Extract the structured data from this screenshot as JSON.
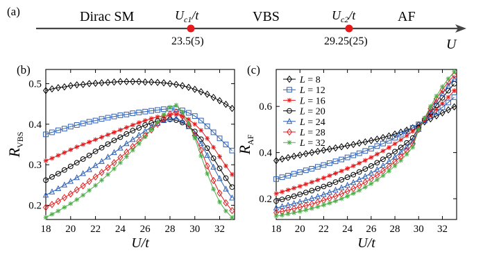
{
  "panel_a": {
    "label": "(a)",
    "phases": [
      "Dirac SM",
      "VBS",
      "AF"
    ],
    "axis_var": "U",
    "critical_points": [
      {
        "symbol_main": "U",
        "symbol_sub": "c1",
        "denominator": "/t",
        "value_text": "23.5(5)",
        "value": 23.5
      },
      {
        "symbol_main": "U",
        "symbol_sub": "c2",
        "denominator": "/t",
        "value_text": "29.25(25)",
        "value": 29.25
      }
    ],
    "point_color": "#e41a1c"
  },
  "chart_data": [
    {
      "panel": "(b)",
      "type": "line",
      "xlabel": "U/t",
      "ylabel_main": "R",
      "ylabel_sub": "VBS",
      "xlim": [
        18,
        33.2
      ],
      "ylim": [
        0.165,
        0.535
      ],
      "xticks": [
        18,
        20,
        22,
        24,
        26,
        28,
        30,
        32
      ],
      "yticks": [
        0.2,
        0.3,
        0.4,
        0.5
      ],
      "x": [
        18,
        18.5,
        19,
        19.5,
        20,
        20.5,
        21,
        21.5,
        22,
        22.5,
        23,
        23.5,
        24,
        24.5,
        25,
        25.5,
        26,
        26.5,
        27,
        27.5,
        28,
        28.5,
        29,
        29.5,
        30,
        30.5,
        31,
        31.5,
        32,
        32.5,
        33
      ],
      "series": [
        {
          "name": "L = 8",
          "color": "#000000",
          "marker": "diamond",
          "values": [
            0.483,
            0.487,
            0.49,
            0.492,
            0.495,
            0.497,
            0.498,
            0.5,
            0.501,
            0.502,
            0.503,
            0.504,
            0.505,
            0.505,
            0.505,
            0.505,
            0.504,
            0.504,
            0.503,
            0.502,
            0.5,
            0.498,
            0.495,
            0.491,
            0.486,
            0.48,
            0.474,
            0.466,
            0.458,
            0.449,
            0.439
          ]
        },
        {
          "name": "L = 12",
          "color": "#2b5fb5",
          "marker": "square",
          "values": [
            0.375,
            0.38,
            0.385,
            0.389,
            0.394,
            0.398,
            0.402,
            0.406,
            0.409,
            0.413,
            0.416,
            0.419,
            0.422,
            0.424,
            0.427,
            0.429,
            0.431,
            0.433,
            0.435,
            0.437,
            0.438,
            0.437,
            0.434,
            0.428,
            0.42,
            0.409,
            0.395,
            0.38,
            0.365,
            0.35,
            0.335
          ]
        },
        {
          "name": "L = 16",
          "color": "#e41a1c",
          "marker": "star",
          "values": [
            0.31,
            0.316,
            0.323,
            0.33,
            0.337,
            0.344,
            0.35,
            0.356,
            0.362,
            0.368,
            0.374,
            0.38,
            0.386,
            0.392,
            0.398,
            0.404,
            0.409,
            0.414,
            0.418,
            0.421,
            0.423,
            0.424,
            0.42,
            0.412,
            0.4,
            0.385,
            0.365,
            0.343,
            0.32,
            0.297,
            0.276
          ]
        },
        {
          "name": "L = 20",
          "color": "#000000",
          "marker": "circle",
          "values": [
            0.262,
            0.27,
            0.278,
            0.287,
            0.296,
            0.305,
            0.314,
            0.323,
            0.333,
            0.342,
            0.351,
            0.36,
            0.368,
            0.376,
            0.384,
            0.391,
            0.398,
            0.403,
            0.408,
            0.411,
            0.412,
            0.41,
            0.404,
            0.395,
            0.382,
            0.363,
            0.341,
            0.316,
            0.291,
            0.267,
            0.245
          ]
        },
        {
          "name": "L = 24",
          "color": "#2b5fb5",
          "marker": "triangle",
          "values": [
            0.225,
            0.233,
            0.241,
            0.25,
            0.259,
            0.268,
            0.278,
            0.288,
            0.298,
            0.308,
            0.319,
            0.33,
            0.341,
            0.352,
            0.362,
            0.373,
            0.383,
            0.393,
            0.402,
            0.409,
            0.413,
            0.414,
            0.407,
            0.394,
            0.376,
            0.352,
            0.323,
            0.294,
            0.266,
            0.24,
            0.218
          ]
        },
        {
          "name": "L = 28",
          "color": "#e41a1c",
          "marker": "diamond",
          "values": [
            0.195,
            0.202,
            0.21,
            0.219,
            0.228,
            0.238,
            0.248,
            0.259,
            0.27,
            0.281,
            0.293,
            0.305,
            0.318,
            0.331,
            0.345,
            0.358,
            0.372,
            0.386,
            0.4,
            0.413,
            0.425,
            0.43,
            0.42,
            0.4,
            0.372,
            0.336,
            0.297,
            0.261,
            0.23,
            0.206,
            0.187
          ]
        },
        {
          "name": "L = 32",
          "color": "#4daf4a",
          "marker": "star",
          "values": [
            0.17,
            0.178,
            0.186,
            0.195,
            0.204,
            0.214,
            0.225,
            0.237,
            0.249,
            0.262,
            0.276,
            0.29,
            0.305,
            0.32,
            0.336,
            0.352,
            0.369,
            0.387,
            0.405,
            0.424,
            0.442,
            0.447,
            0.43,
            0.402,
            0.366,
            0.322,
            0.278,
            0.24,
            0.208,
            0.186,
            0.17
          ]
        }
      ]
    },
    {
      "panel": "(c)",
      "type": "line",
      "xlabel": "U/t",
      "ylabel_main": "R",
      "ylabel_sub": "AF",
      "xlim": [
        18,
        33.2
      ],
      "ylim": [
        0.11,
        0.76
      ],
      "xticks": [
        18,
        20,
        22,
        24,
        26,
        28,
        30,
        32
      ],
      "yticks": [
        0.2,
        0.4,
        0.6
      ],
      "legend_position": "top-left",
      "x": [
        18,
        18.5,
        19,
        19.5,
        20,
        20.5,
        21,
        21.5,
        22,
        22.5,
        23,
        23.5,
        24,
        24.5,
        25,
        25.5,
        26,
        26.5,
        27,
        27.5,
        28,
        28.5,
        29,
        29.5,
        30,
        30.5,
        31,
        31.5,
        32,
        32.5,
        33
      ],
      "series": [
        {
          "name": "L = 8",
          "color": "#000000",
          "marker": "diamond",
          "values": [
            0.365,
            0.372,
            0.378,
            0.384,
            0.389,
            0.395,
            0.4,
            0.405,
            0.41,
            0.415,
            0.42,
            0.425,
            0.43,
            0.435,
            0.441,
            0.446,
            0.452,
            0.458,
            0.465,
            0.472,
            0.48,
            0.488,
            0.497,
            0.507,
            0.52,
            0.533,
            0.546,
            0.559,
            0.572,
            0.585,
            0.598
          ]
        },
        {
          "name": "L = 12",
          "color": "#2b5fb5",
          "marker": "square",
          "values": [
            0.285,
            0.293,
            0.3,
            0.308,
            0.315,
            0.323,
            0.33,
            0.338,
            0.346,
            0.354,
            0.362,
            0.37,
            0.379,
            0.388,
            0.397,
            0.407,
            0.417,
            0.428,
            0.439,
            0.451,
            0.464,
            0.478,
            0.492,
            0.507,
            0.522,
            0.539,
            0.557,
            0.576,
            0.596,
            0.617,
            0.64
          ]
        },
        {
          "name": "L = 16",
          "color": "#e41a1c",
          "marker": "star",
          "values": [
            0.222,
            0.23,
            0.238,
            0.246,
            0.254,
            0.263,
            0.272,
            0.281,
            0.29,
            0.3,
            0.31,
            0.32,
            0.331,
            0.342,
            0.354,
            0.366,
            0.379,
            0.393,
            0.407,
            0.422,
            0.438,
            0.455,
            0.473,
            0.492,
            0.515,
            0.538,
            0.562,
            0.587,
            0.613,
            0.64,
            0.668
          ]
        },
        {
          "name": "L = 20",
          "color": "#000000",
          "marker": "circle",
          "values": [
            0.19,
            0.197,
            0.204,
            0.211,
            0.219,
            0.227,
            0.235,
            0.244,
            0.253,
            0.262,
            0.272,
            0.282,
            0.293,
            0.304,
            0.316,
            0.329,
            0.342,
            0.356,
            0.371,
            0.387,
            0.404,
            0.422,
            0.442,
            0.463,
            0.508,
            0.54,
            0.572,
            0.605,
            0.637,
            0.668,
            0.698
          ]
        },
        {
          "name": "L = 24",
          "color": "#2b5fb5",
          "marker": "triangle",
          "values": [
            0.16,
            0.166,
            0.172,
            0.179,
            0.186,
            0.193,
            0.201,
            0.209,
            0.218,
            0.227,
            0.237,
            0.247,
            0.258,
            0.27,
            0.283,
            0.296,
            0.311,
            0.326,
            0.343,
            0.361,
            0.38,
            0.401,
            0.424,
            0.449,
            0.5,
            0.54,
            0.58,
            0.619,
            0.655,
            0.688,
            0.718
          ]
        },
        {
          "name": "L = 28",
          "color": "#e41a1c",
          "marker": "diamond",
          "values": [
            0.14,
            0.145,
            0.151,
            0.157,
            0.163,
            0.17,
            0.177,
            0.185,
            0.193,
            0.202,
            0.211,
            0.221,
            0.232,
            0.244,
            0.257,
            0.271,
            0.286,
            0.302,
            0.32,
            0.339,
            0.36,
            0.383,
            0.408,
            0.436,
            0.5,
            0.545,
            0.59,
            0.633,
            0.672,
            0.706,
            0.735
          ]
        },
        {
          "name": "L = 32",
          "color": "#4daf4a",
          "marker": "star",
          "values": [
            0.125,
            0.129,
            0.134,
            0.139,
            0.145,
            0.151,
            0.158,
            0.165,
            0.173,
            0.181,
            0.19,
            0.2,
            0.211,
            0.223,
            0.236,
            0.25,
            0.265,
            0.282,
            0.3,
            0.32,
            0.342,
            0.366,
            0.393,
            0.423,
            0.5,
            0.55,
            0.6,
            0.645,
            0.685,
            0.72,
            0.75
          ]
        }
      ]
    }
  ]
}
